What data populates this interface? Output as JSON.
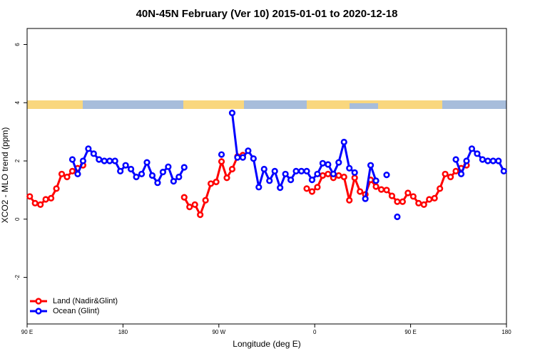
{
  "chart_data": {
    "type": "line",
    "title": "40N-45N February (Ver 10)   2015-01-01 to 2020-12-18",
    "x_label": "Longitude (deg E)",
    "y_label": "XCO2 - MLO trend (ppm)",
    "x": [
      92.5,
      97.5,
      102.5,
      107.5,
      112.5,
      117.5,
      122.5,
      127.5,
      132.5,
      137.5,
      142.5,
      147.5,
      152.5,
      157.5,
      162.5,
      167.5,
      172.5,
      177.5,
      182.5,
      187.5,
      192.5,
      197.5,
      202.5,
      207.5,
      212.5,
      217.5,
      222.5,
      227.5,
      232.5,
      237.5,
      242.5,
      247.5,
      252.5,
      257.5,
      262.5,
      267.5,
      272.5,
      277.5,
      282.5,
      287.5,
      292.5,
      297.5,
      302.5,
      307.5,
      312.5,
      317.5,
      322.5,
      327.5,
      332.5,
      337.5,
      342.5,
      347.5,
      352.5,
      357.5,
      362.5,
      367.5,
      372.5,
      377.5,
      382.5,
      387.5,
      392.5,
      397.5,
      402.5,
      407.5,
      412.5,
      417.5,
      422.5,
      427.5,
      432.5,
      437.5,
      442.5,
      447.5,
      452.5,
      457.5,
      462.5,
      467.5,
      472.5,
      477.5,
      482.5,
      487.5,
      492.5,
      497.5,
      502.5,
      507.5,
      512.5,
      517.5,
      522.5,
      527.5,
      532.5,
      537.5
    ],
    "series": [
      {
        "name": "Land (Nadir&Glint)",
        "color": "#ff0000",
        "values": [
          0.78,
          0.55,
          0.5,
          0.68,
          0.72,
          1.05,
          1.55,
          1.45,
          1.65,
          1.75,
          1.85,
          null,
          null,
          null,
          null,
          null,
          null,
          null,
          null,
          null,
          null,
          null,
          null,
          null,
          null,
          null,
          null,
          null,
          null,
          0.75,
          0.42,
          0.5,
          0.15,
          0.65,
          1.22,
          1.28,
          1.98,
          1.42,
          1.72,
          2.15,
          2.2,
          null,
          null,
          null,
          null,
          null,
          null,
          null,
          null,
          null,
          null,
          null,
          1.05,
          0.95,
          1.1,
          1.5,
          1.55,
          1.42,
          1.5,
          1.45,
          0.65,
          1.42,
          0.95,
          0.85,
          1.35,
          1.12,
          1.02,
          1.0,
          0.8,
          0.6,
          0.6,
          0.9,
          0.78,
          0.55,
          0.5,
          0.68,
          0.72,
          1.05,
          1.55,
          1.45,
          1.65,
          1.75,
          1.85,
          null,
          null,
          null,
          null,
          null,
          null,
          null
        ]
      },
      {
        "name": "Ocean (Glint)",
        "color": "#0000ff",
        "values": [
          null,
          null,
          null,
          null,
          null,
          null,
          null,
          null,
          2.05,
          1.55,
          2.0,
          2.42,
          2.25,
          2.05,
          2.0,
          2.0,
          2.0,
          1.65,
          1.85,
          1.72,
          1.45,
          1.55,
          1.95,
          1.5,
          1.25,
          1.62,
          1.8,
          1.3,
          1.45,
          1.78,
          null,
          null,
          null,
          null,
          null,
          null,
          2.22,
          null,
          3.65,
          2.12,
          2.12,
          2.35,
          2.08,
          1.1,
          1.72,
          1.32,
          1.65,
          1.08,
          1.55,
          1.35,
          1.65,
          1.65,
          1.65,
          1.35,
          1.55,
          1.92,
          1.88,
          1.55,
          1.95,
          2.65,
          1.75,
          1.6,
          null,
          0.7,
          1.85,
          1.32,
          null,
          1.52,
          null,
          0.08,
          null,
          null,
          null,
          null,
          null,
          null,
          null,
          null,
          null,
          null,
          2.05,
          1.55,
          2.0,
          2.42,
          2.25,
          2.05,
          2.0,
          2.0,
          2.0,
          1.65
        ]
      }
    ],
    "xlim": [
      90,
      540
    ],
    "xticks": [
      {
        "value": 90,
        "label": "90 E"
      },
      180,
      {
        "value": 270,
        "label": "90 W"
      },
      {
        "value": 360,
        "label": "0"
      },
      {
        "value": 450,
        "label": "90 E"
      },
      {
        "value": 540,
        "label": "180"
      }
    ],
    "ylim": [
      -3.6,
      6.55
    ],
    "yticks": [
      -2,
      0,
      2,
      4,
      6
    ],
    "legend": "bottom-left"
  }
}
